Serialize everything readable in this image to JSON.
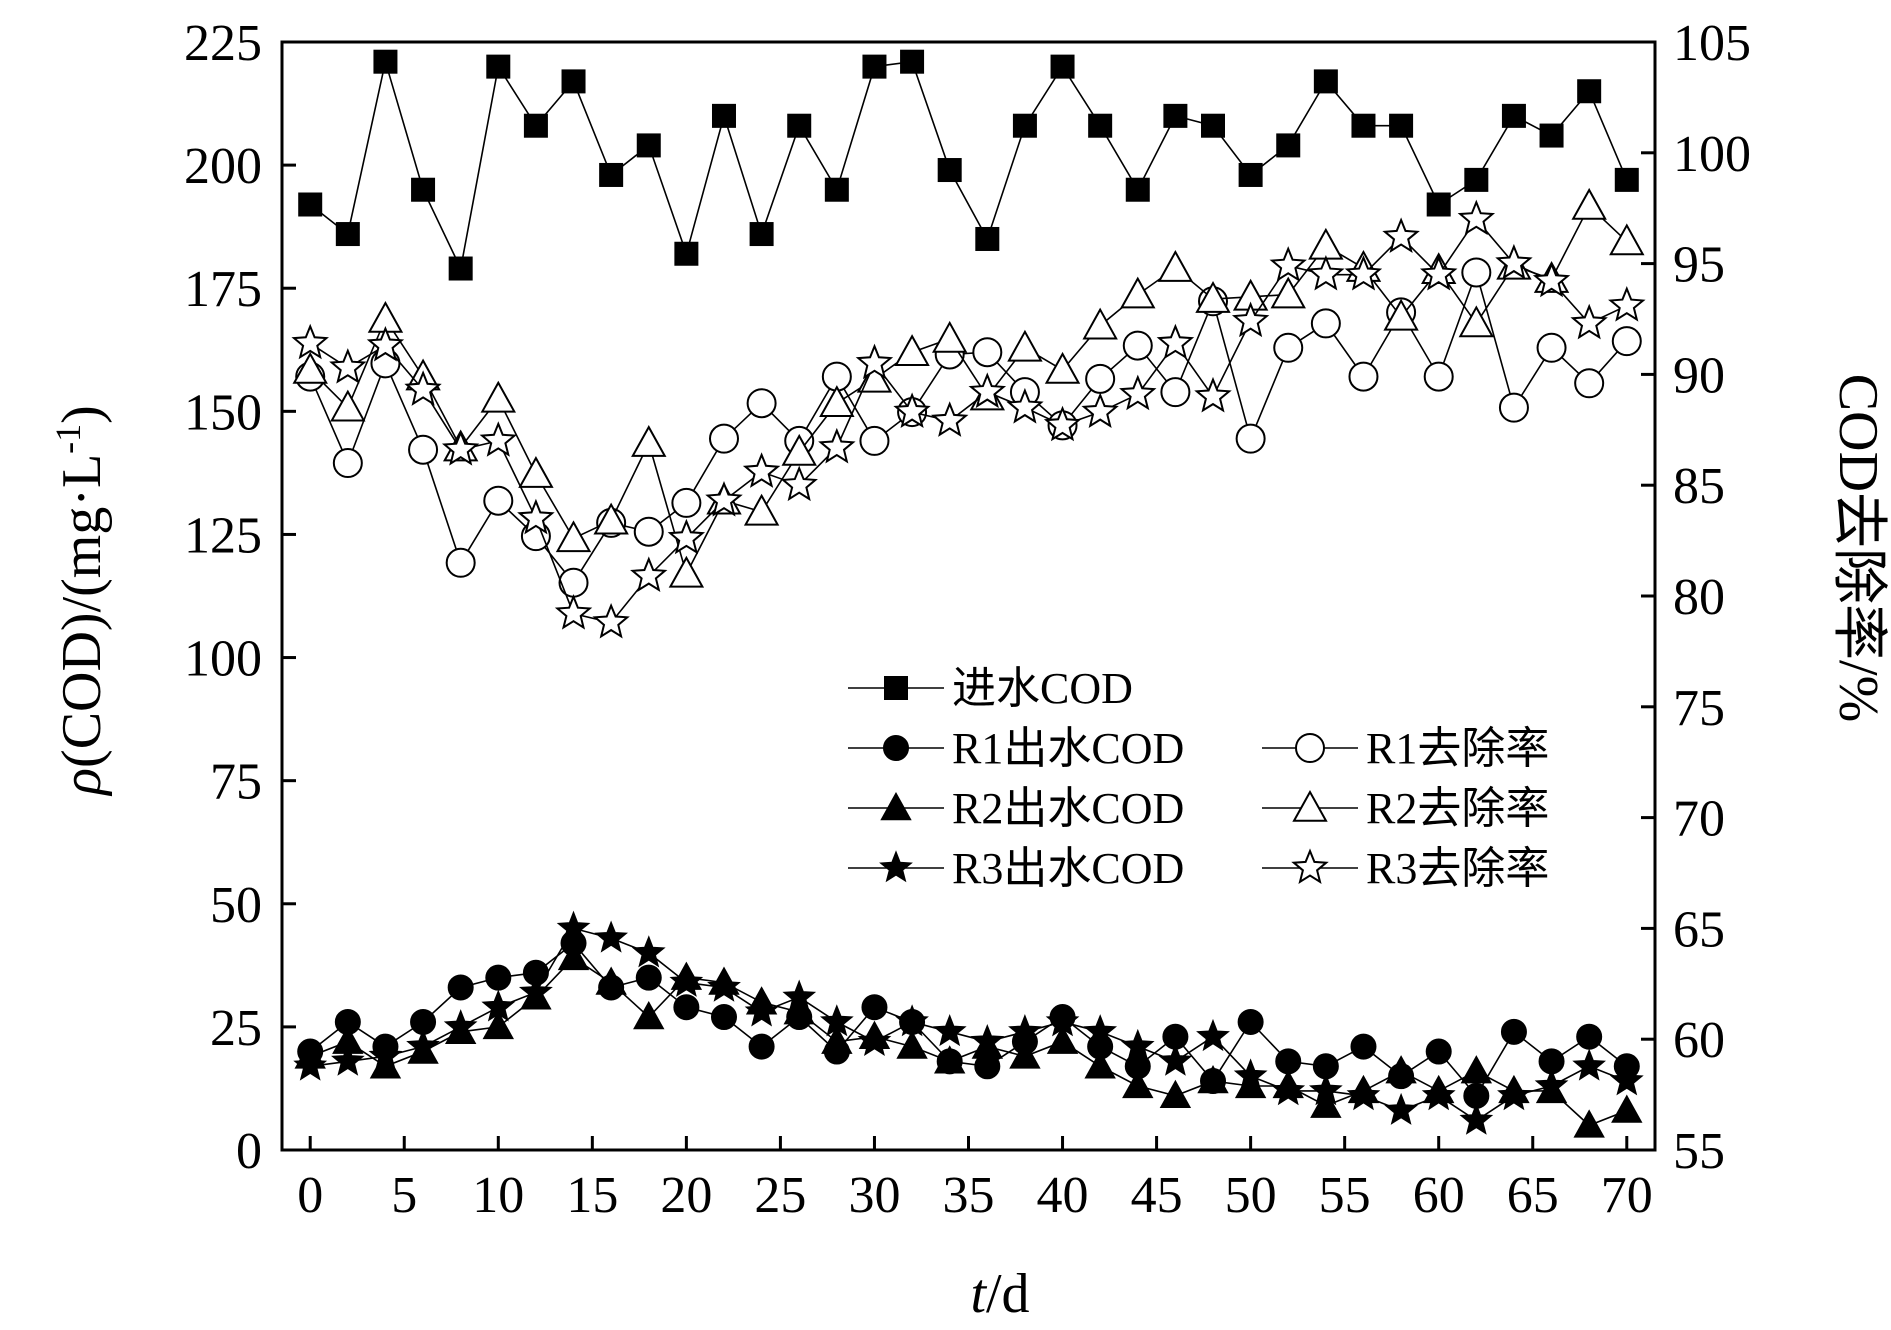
{
  "chart_data": {
    "type": "line",
    "xlabel_italic": "t",
    "xlabel_unit": "/d",
    "ylabel_left_italic": "ρ",
    "ylabel_left_main": "(COD)/(mg·L",
    "ylabel_left_sup": "-1",
    "ylabel_left_close": ")",
    "ylabel_right": "COD去除率/%",
    "xlim": [
      -1.5,
      71.5
    ],
    "ylim_left": [
      0,
      225
    ],
    "ylim_right": [
      55,
      105
    ],
    "x_ticks": [
      0,
      5,
      10,
      15,
      20,
      25,
      30,
      35,
      40,
      45,
      50,
      55,
      60,
      65,
      70
    ],
    "y_left_ticks": [
      0,
      25,
      50,
      75,
      100,
      125,
      150,
      175,
      200,
      225
    ],
    "y_right_ticks": [
      55,
      60,
      65,
      70,
      75,
      80,
      85,
      90,
      95,
      100,
      105
    ],
    "x": [
      0,
      2,
      4,
      6,
      8,
      10,
      12,
      14,
      16,
      18,
      20,
      22,
      24,
      26,
      28,
      30,
      32,
      34,
      36,
      38,
      40,
      42,
      44,
      46,
      48,
      50,
      52,
      54,
      56,
      58,
      60,
      62,
      64,
      66,
      68,
      70
    ],
    "series": [
      {
        "name": "进水COD",
        "axis": "left",
        "marker": "square",
        "filled": true,
        "values": [
          192,
          186,
          221,
          195,
          179,
          220,
          208,
          217,
          198,
          204,
          182,
          210,
          186,
          208,
          195,
          220,
          221,
          199,
          185,
          208,
          220,
          208,
          195,
          210,
          208,
          198,
          204,
          217,
          208,
          208,
          192,
          197,
          210,
          206,
          215,
          197
        ]
      },
      {
        "name": "R1出水COD",
        "axis": "left",
        "marker": "circle",
        "filled": true,
        "values": [
          20,
          26,
          21,
          26,
          33,
          35,
          36,
          42,
          33,
          35,
          29,
          27,
          21,
          27,
          20,
          29,
          26,
          18,
          17,
          22,
          27,
          21,
          17,
          23,
          14,
          26,
          18,
          17,
          21,
          15,
          20,
          11,
          24,
          18,
          23,
          17
        ]
      },
      {
        "name": "R1去除率",
        "axis": "right",
        "marker": "circle",
        "filled": false,
        "values": [
          89.9,
          86.0,
          90.5,
          86.6,
          81.5,
          84.3,
          82.7,
          80.6,
          83.3,
          82.9,
          84.2,
          87.1,
          88.7,
          87.0,
          89.9,
          87.0,
          88.3,
          90.9,
          91.0,
          89.2,
          87.7,
          89.8,
          91.3,
          89.2,
          93.3,
          87.1,
          91.2,
          92.3,
          89.9,
          92.8,
          89.9,
          94.6,
          88.5,
          91.2,
          89.6,
          91.5
        ]
      },
      {
        "name": "R2出水COD",
        "axis": "left",
        "marker": "triangle",
        "filled": true,
        "values": [
          19,
          22,
          17,
          20,
          24,
          25,
          31,
          39,
          34,
          27,
          35,
          34,
          30,
          28,
          22,
          23,
          21,
          18,
          21,
          19,
          22,
          17,
          13,
          11,
          14,
          13,
          13,
          9,
          12,
          16,
          12,
          16,
          12,
          12,
          5,
          8
        ]
      },
      {
        "name": "R2去除率",
        "axis": "right",
        "marker": "triangle",
        "filled": false,
        "values": [
          90.2,
          88.5,
          92.5,
          89.9,
          86.7,
          88.9,
          85.5,
          82.6,
          83.4,
          86.9,
          81.0,
          84.3,
          83.8,
          86.5,
          88.7,
          89.8,
          91.0,
          91.6,
          89.0,
          91.2,
          90.2,
          92.2,
          93.6,
          94.8,
          93.4,
          93.5,
          93.6,
          95.8,
          94.8,
          92.6,
          94.7,
          92.3,
          94.9,
          94.3,
          97.6,
          96.0
        ]
      },
      {
        "name": "R3出水COD",
        "axis": "left",
        "marker": "star",
        "filled": true,
        "values": [
          17,
          18,
          19,
          21,
          25,
          29,
          32,
          45,
          43,
          40,
          34,
          33,
          28,
          31,
          26,
          22,
          26,
          24,
          22,
          24,
          26,
          24,
          21,
          18,
          23,
          15,
          12,
          12,
          11,
          8,
          11,
          6,
          11,
          13,
          17,
          14
        ]
      },
      {
        "name": "R3去除率",
        "axis": "right",
        "marker": "star",
        "filled": false,
        "values": [
          91.4,
          90.3,
          91.3,
          89.3,
          86.6,
          87.0,
          83.5,
          79.2,
          78.8,
          80.9,
          82.6,
          84.3,
          85.6,
          85.0,
          86.7,
          90.5,
          88.3,
          87.9,
          89.2,
          88.5,
          87.7,
          88.3,
          89.1,
          91.4,
          89.0,
          92.4,
          94.9,
          94.5,
          94.5,
          96.2,
          94.5,
          97.0,
          95.0,
          94.2,
          92.3,
          93.1
        ]
      }
    ],
    "legend": [
      [
        "进水COD"
      ],
      [
        "R1出水COD",
        "R1去除率"
      ],
      [
        "R2出水COD",
        "R2去除率"
      ],
      [
        "R3出水COD",
        "R3去除率"
      ]
    ],
    "legend_position": "center-right",
    "grid": false
  }
}
